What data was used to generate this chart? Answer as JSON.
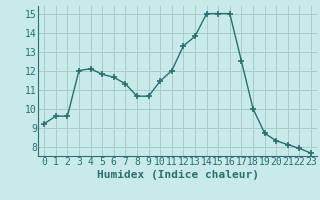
{
  "x": [
    0,
    1,
    2,
    3,
    4,
    5,
    6,
    7,
    8,
    9,
    10,
    11,
    12,
    13,
    14,
    15,
    16,
    17,
    18,
    19,
    20,
    21,
    22,
    23
  ],
  "y": [
    9.2,
    9.6,
    9.6,
    12.0,
    12.1,
    11.8,
    11.65,
    11.3,
    10.65,
    10.65,
    11.45,
    12.0,
    13.3,
    13.8,
    15.0,
    15.0,
    15.0,
    12.5,
    10.0,
    8.7,
    8.3,
    8.1,
    7.9,
    7.65
  ],
  "line_color": "#2d6e6e",
  "marker": "+",
  "background_color": "#c8eaea",
  "grid_color": "#a8cccc",
  "xlabel": "Humidex (Indice chaleur)",
  "xlim": [
    -0.5,
    23.5
  ],
  "ylim": [
    7.5,
    15.4
  ],
  "yticks": [
    8,
    9,
    10,
    11,
    12,
    13,
    14,
    15
  ],
  "xticks": [
    0,
    1,
    2,
    3,
    4,
    5,
    6,
    7,
    8,
    9,
    10,
    11,
    12,
    13,
    14,
    15,
    16,
    17,
    18,
    19,
    20,
    21,
    22,
    23
  ],
  "tick_label_color": "#2d6e6e",
  "xlabel_color": "#2d6e6e",
  "xlabel_fontsize": 8,
  "tick_fontsize": 7
}
